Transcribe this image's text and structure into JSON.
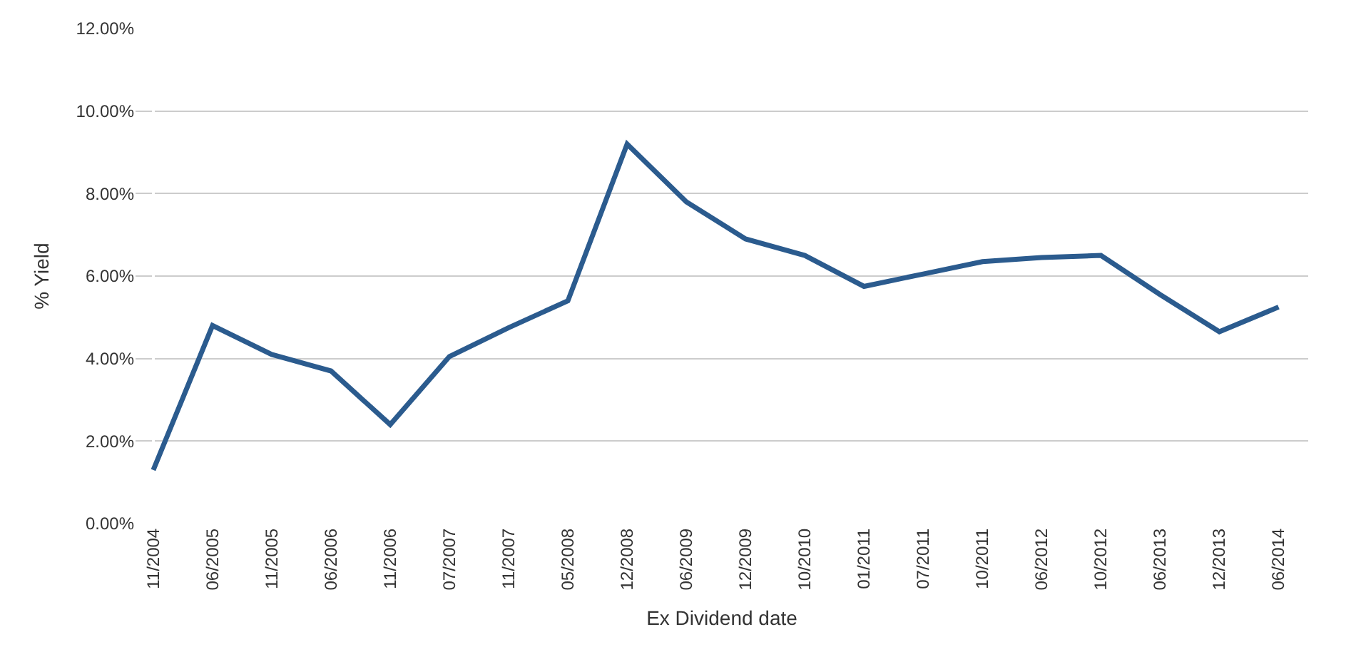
{
  "chart_data": {
    "type": "line",
    "xlabel": "Ex Dividend date",
    "ylabel": "% Yield",
    "categories": [
      "11/2004",
      "06/2005",
      "11/2005",
      "06/2006",
      "11/2006",
      "07/2007",
      "11/2007",
      "05/2008",
      "12/2008",
      "06/2009",
      "12/2009",
      "10/2010",
      "01/2011",
      "07/2011",
      "10/2011",
      "06/2012",
      "10/2012",
      "06/2013",
      "12/2013",
      "06/2014"
    ],
    "series": [
      {
        "color": "#2b5b8e",
        "values": [
          1.3,
          4.8,
          4.1,
          3.7,
          2.4,
          4.05,
          4.75,
          5.4,
          9.2,
          7.8,
          6.9,
          6.5,
          5.75,
          6.05,
          6.35,
          6.45,
          6.5,
          5.55,
          4.65,
          5.25
        ]
      }
    ],
    "ylim": [
      0,
      12
    ],
    "yticks": [
      {
        "value": 0,
        "label": "0.00%"
      },
      {
        "value": 2,
        "label": "2.00%"
      },
      {
        "value": 4,
        "label": "4.00%"
      },
      {
        "value": 6,
        "label": "6.00%"
      },
      {
        "value": 8,
        "label": "8.00%"
      },
      {
        "value": 10,
        "label": "10.00%"
      },
      {
        "value": 12,
        "label": "12.00%"
      }
    ],
    "grid": "y",
    "marker": "none",
    "line_style": "solid"
  }
}
